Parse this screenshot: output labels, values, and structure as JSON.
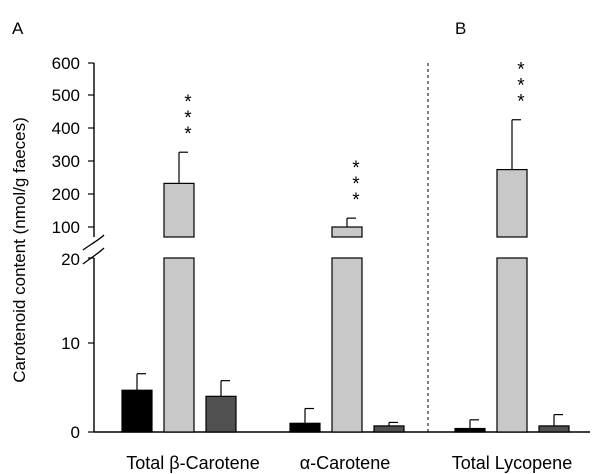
{
  "chart_data": {
    "type": "bar",
    "panel_labels": [
      "A",
      "B"
    ],
    "ylabel": "Carotenoid content (nmol/g faeces)",
    "y_axis": {
      "lower_segment": {
        "range": [
          0,
          20
        ],
        "ticks": [
          "0",
          "10",
          "20"
        ]
      },
      "upper_segment": {
        "range": [
          100,
          600
        ],
        "ticks": [
          "100",
          "200",
          "300",
          "400",
          "500",
          "600"
        ]
      },
      "axis_break": true
    },
    "categories": [
      "Total β-Carotene",
      "α-Carotene",
      "Total Lycopene"
    ],
    "panels": {
      "A": [
        "Total β-Carotene",
        "α-Carotene"
      ],
      "B": [
        "Total Lycopene"
      ]
    },
    "series": [
      {
        "color": "#000000",
        "values": [
          4.8,
          1.0,
          0.4
        ],
        "errors": [
          1.9,
          1.7,
          1.0
        ]
      },
      {
        "color": "#c8c8c8",
        "values": [
          233,
          92,
          275
        ],
        "errors": [
          95,
          35,
          152
        ]
      },
      {
        "color": "#505050",
        "values": [
          4.1,
          0.7,
          0.7
        ],
        "errors": [
          1.8,
          0.4,
          1.3
        ]
      }
    ],
    "significance": [
      {
        "category": "Total β-Carotene",
        "label": "***"
      },
      {
        "category": "α-Carotene",
        "label": "***"
      },
      {
        "category": "Total Lycopene",
        "label": "***"
      }
    ],
    "grid": false,
    "legend": "none"
  }
}
